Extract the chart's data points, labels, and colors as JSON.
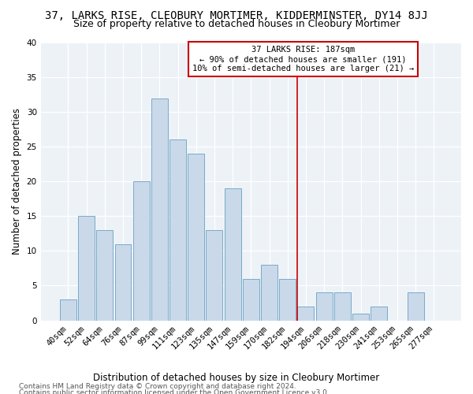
{
  "title": "37, LARKS RISE, CLEOBURY MORTIMER, KIDDERMINSTER, DY14 8JJ",
  "subtitle": "Size of property relative to detached houses in Cleobury Mortimer",
  "xlabel": "Distribution of detached houses by size in Cleobury Mortimer",
  "ylabel": "Number of detached properties",
  "footnote1": "Contains HM Land Registry data © Crown copyright and database right 2024.",
  "footnote2": "Contains public sector information licensed under the Open Government Licence v3.0.",
  "bar_labels": [
    "40sqm",
    "52sqm",
    "64sqm",
    "76sqm",
    "87sqm",
    "99sqm",
    "111sqm",
    "123sqm",
    "135sqm",
    "147sqm",
    "159sqm",
    "170sqm",
    "182sqm",
    "194sqm",
    "206sqm",
    "218sqm",
    "230sqm",
    "241sqm",
    "253sqm",
    "265sqm",
    "277sqm"
  ],
  "bar_values": [
    3,
    15,
    13,
    11,
    20,
    32,
    26,
    24,
    13,
    19,
    6,
    8,
    6,
    2,
    4,
    4,
    1,
    2,
    0,
    4,
    0
  ],
  "bar_color": "#c9d9ea",
  "bar_edge_color": "#7aaac8",
  "vline_color": "#cc0000",
  "annotation_text": "37 LARKS RISE: 187sqm\n← 90% of detached houses are smaller (191)\n10% of semi-detached houses are larger (21) →",
  "annotation_box_color": "#cc0000",
  "ylim": [
    0,
    40
  ],
  "yticks": [
    0,
    5,
    10,
    15,
    20,
    25,
    30,
    35,
    40
  ],
  "title_fontsize": 10,
  "subtitle_fontsize": 9,
  "xlabel_fontsize": 8.5,
  "ylabel_fontsize": 8.5,
  "tick_fontsize": 7.5,
  "annotation_fontsize": 7.5,
  "footnote_fontsize": 6.5,
  "background_color": "#edf2f7",
  "fig_bg": "#ffffff",
  "vline_xindex": 12.55
}
